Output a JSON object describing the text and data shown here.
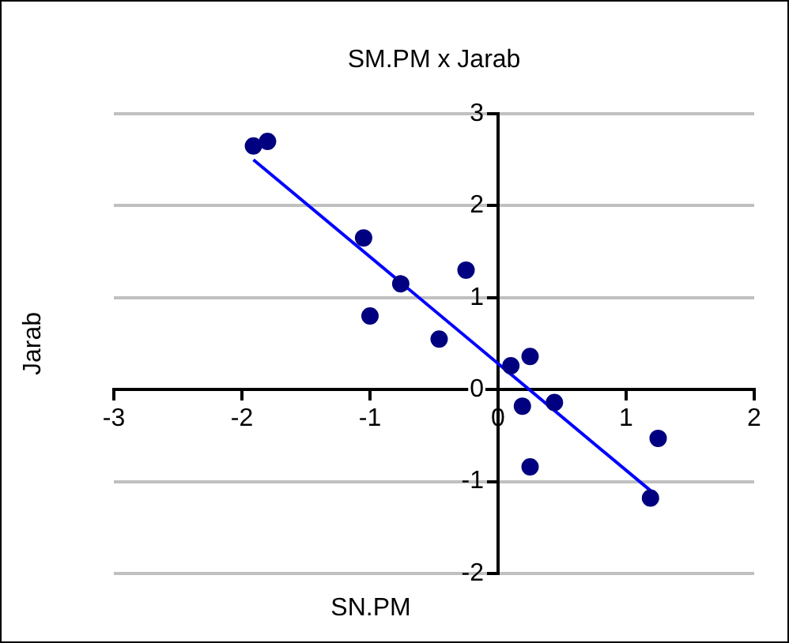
{
  "chart_data": {
    "type": "scatter",
    "title": "SM.PM x Jarab",
    "xlabel": "SN.PM",
    "ylabel": "Jarab",
    "xlim": [
      -3,
      2
    ],
    "xticks": [
      -3,
      -2,
      -1,
      0,
      1,
      2
    ],
    "ylim": [
      -2,
      3
    ],
    "yticks": [
      -2,
      -1,
      0,
      1,
      2,
      3
    ],
    "grid": "y",
    "legend": false,
    "marker": "circle",
    "series": [
      {
        "color": "#000080",
        "x": [
          -1.91,
          -1.8,
          -1.05,
          -1.0,
          -0.76,
          -0.46,
          -0.25,
          0.1,
          0.25,
          0.19,
          0.44,
          0.25,
          1.25,
          1.19
        ],
        "values": [
          2.65,
          2.7,
          1.65,
          0.8,
          1.15,
          0.55,
          1.3,
          0.26,
          0.36,
          -0.18,
          -0.14,
          -0.84,
          -0.53,
          -1.18
        ]
      },
      {
        "type": "line",
        "color": "#0000ff",
        "x": [
          -1.91,
          1.2
        ],
        "values": [
          2.5,
          -1.11
        ],
        "marker": "none"
      }
    ]
  }
}
